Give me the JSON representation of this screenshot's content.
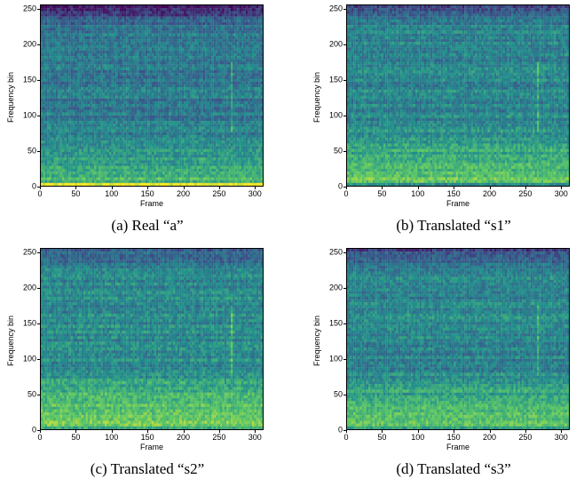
{
  "colors": {
    "low": "#440154",
    "mid": "#21918c",
    "high": "#fde725"
  },
  "axes": {
    "x_label": "Frame",
    "y_label": "Frequency bin",
    "x_ticks": [
      "0",
      "50",
      "100",
      "150",
      "200",
      "250",
      "300"
    ],
    "y_ticks": [
      "0",
      "50",
      "100",
      "150",
      "200",
      "250"
    ],
    "x_range": [
      0,
      312
    ],
    "y_range": [
      0,
      256
    ]
  },
  "panels": [
    {
      "caption": "(a) Real “a”"
    },
    {
      "caption": "(b) Translated “s1”"
    },
    {
      "caption": "(c) Translated “s2”"
    },
    {
      "caption": "(d) Translated “s3”"
    }
  ],
  "chart_data": [
    {
      "type": "heatmap",
      "title": "(a) Real “a”",
      "xlabel": "Frame",
      "ylabel": "Frequency bin",
      "xlim": [
        0,
        312
      ],
      "ylim": [
        0,
        256
      ],
      "colormap": "viridis"
    },
    {
      "type": "heatmap",
      "title": "(b) Translated “s1”",
      "xlabel": "Frame",
      "ylabel": "Frequency bin",
      "xlim": [
        0,
        312
      ],
      "ylim": [
        0,
        256
      ],
      "colormap": "viridis"
    },
    {
      "type": "heatmap",
      "title": "(c) Translated “s2”",
      "xlabel": "Frame",
      "ylabel": "Frequency bin",
      "xlim": [
        0,
        312
      ],
      "ylim": [
        0,
        256
      ],
      "colormap": "viridis"
    },
    {
      "type": "heatmap",
      "title": "(d) Translated “s3”",
      "xlabel": "Frame",
      "ylabel": "Frequency bin",
      "xlim": [
        0,
        312
      ],
      "ylim": [
        0,
        256
      ],
      "colormap": "viridis"
    }
  ]
}
